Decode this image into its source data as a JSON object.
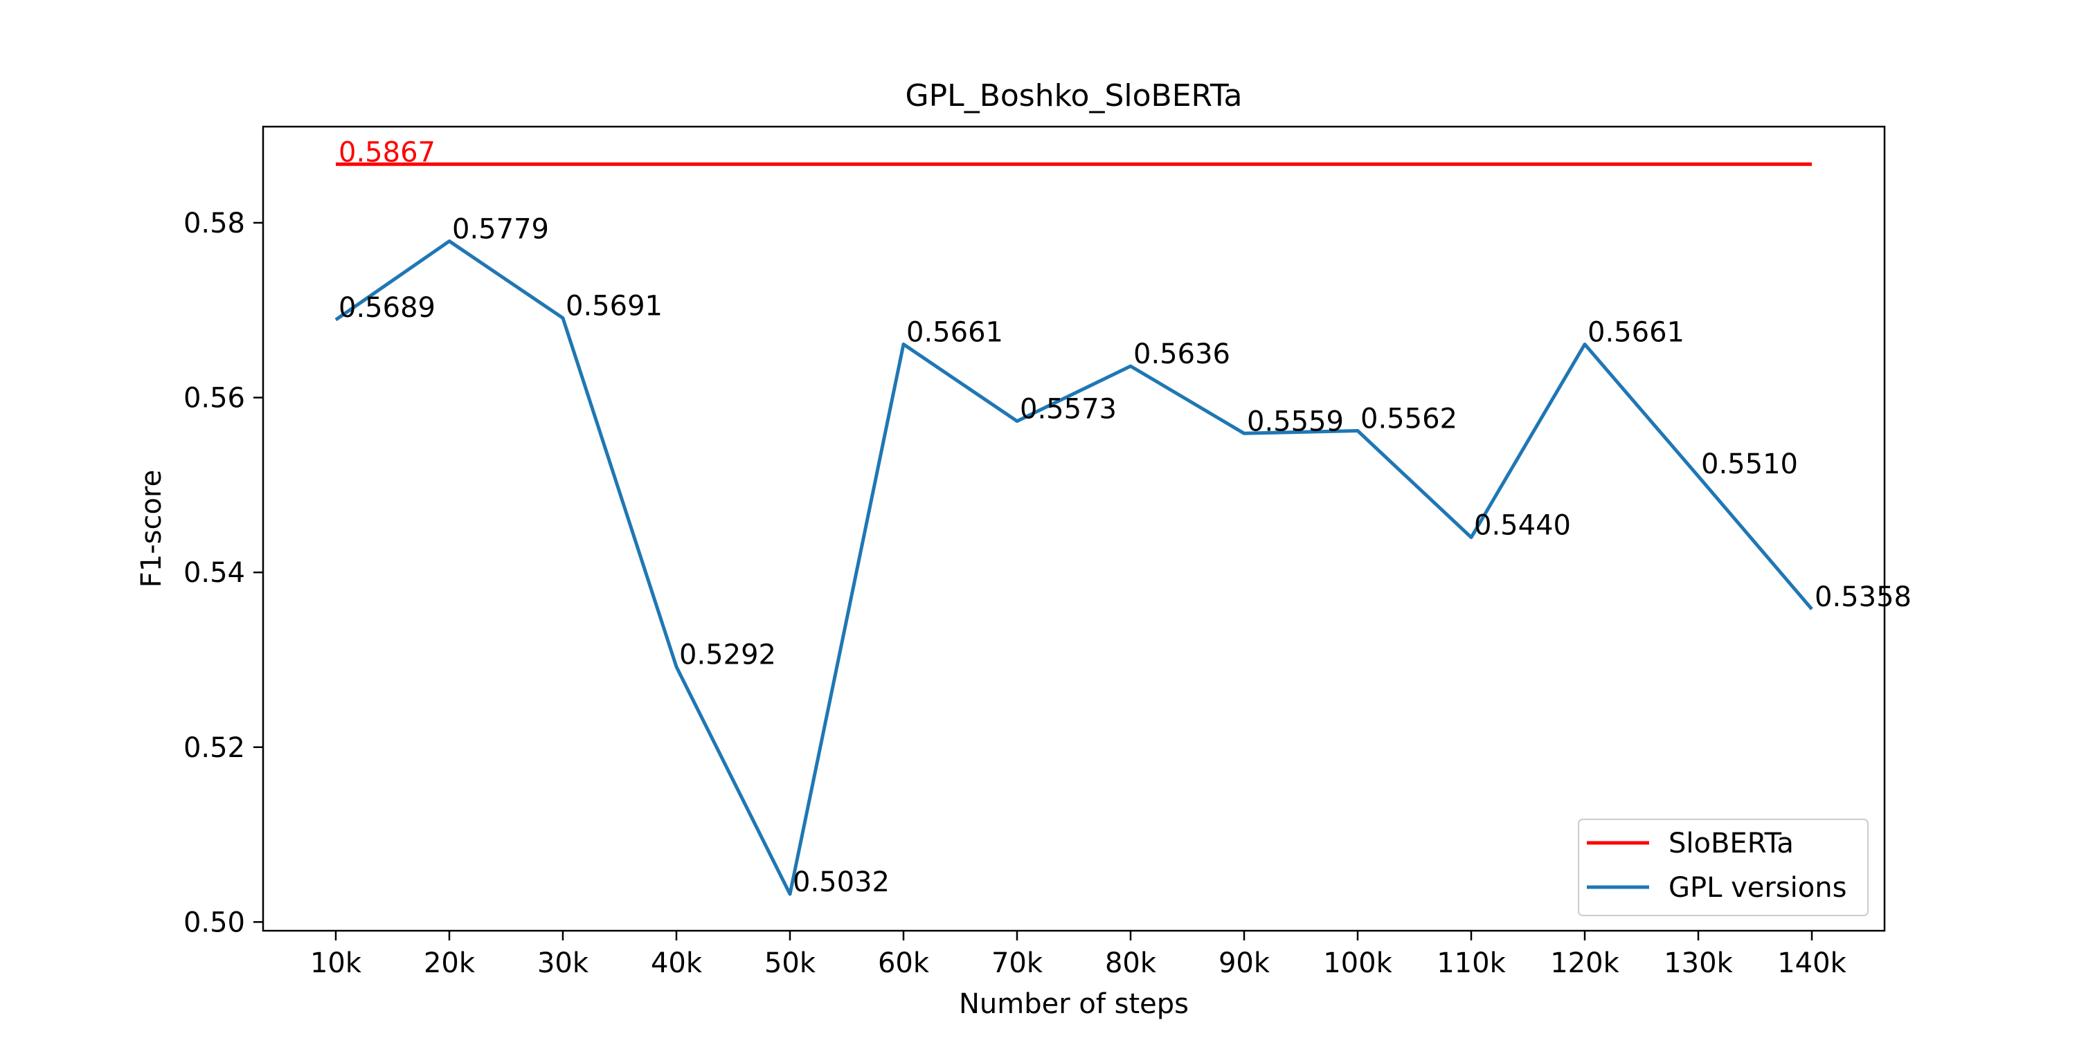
{
  "chart_data": {
    "type": "line",
    "title": "GPL_Boshko_SloBERTa",
    "xlabel": "Number of steps",
    "ylabel": "F1-score",
    "categories": [
      "10k",
      "20k",
      "30k",
      "40k",
      "50k",
      "60k",
      "70k",
      "80k",
      "90k",
      "100k",
      "110k",
      "120k",
      "130k",
      "140k"
    ],
    "ylim": [
      0.499,
      0.591
    ],
    "yticks": [
      "0.50",
      "0.52",
      "0.54",
      "0.56",
      "0.58"
    ],
    "grid": false,
    "legend_position": "bottom-right",
    "series": [
      {
        "name": "SloBERTa",
        "color": "#ff0000",
        "values": [
          0.5867,
          0.5867,
          0.5867,
          0.5867,
          0.5867,
          0.5867,
          0.5867,
          0.5867,
          0.5867,
          0.5867,
          0.5867,
          0.5867,
          0.5867,
          0.5867
        ],
        "labels": [
          "0.5867"
        ]
      },
      {
        "name": "GPL versions",
        "color": "#1f77b4",
        "values": [
          0.5689,
          0.5779,
          0.5691,
          0.5292,
          0.5032,
          0.5661,
          0.5573,
          0.5636,
          0.5559,
          0.5562,
          0.544,
          0.5661,
          0.551,
          0.5358
        ],
        "labels": [
          "0.5689",
          "0.5779",
          "0.5691",
          "0.5292",
          "0.5032",
          "0.5661",
          "0.5573",
          "0.5636",
          "0.5559",
          "0.5562",
          "0.5440",
          "0.5661",
          "0.5510",
          "0.5358"
        ]
      }
    ]
  }
}
